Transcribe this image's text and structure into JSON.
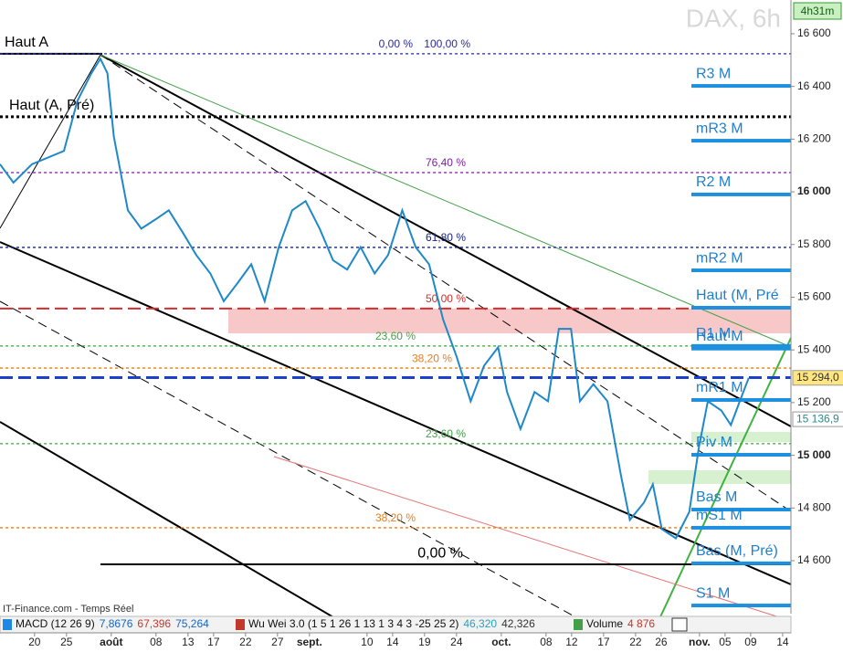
{
  "header": {
    "symbol": "DAX, 6h",
    "timer": "4h31m"
  },
  "chart_data": {
    "type": "line",
    "x": [
      -5.4,
      -3.3,
      -0.4,
      4.6,
      6.7,
      8.9,
      10.3,
      11.4,
      12.4,
      14.6,
      16.7,
      18.9,
      21,
      23.2,
      25.3,
      27.5,
      29.6,
      31.8,
      33.9,
      36,
      38.2,
      40.3,
      42.4,
      44.6,
      46.7,
      48.9,
      51,
      53.2,
      55.3,
      57.5,
      59.6,
      61.7,
      63.9,
      66,
      68.2,
      70.3,
      72.5,
      73.9,
      76,
      78.2,
      80.3,
      82,
      83.9,
      85.3,
      87.4,
      89.6,
      91.7,
      93.1,
      95.3,
      96.7,
      98.1,
      100.3,
      102.4,
      103.9,
      105.3,
      107.4,
      108.9,
      110.3,
      111.7
    ],
    "values": [
      16105,
      16035,
      16105,
      16155,
      16345,
      16450,
      16505,
      16450,
      16210,
      15930,
      15860,
      15895,
      15930,
      15845,
      15760,
      15690,
      15585,
      15655,
      15725,
      15585,
      15790,
      15930,
      15965,
      15860,
      15740,
      15705,
      15790,
      15690,
      15760,
      15930,
      15790,
      15725,
      15515,
      15375,
      15205,
      15340,
      15410,
      15240,
      15100,
      15240,
      15205,
      15480,
      15480,
      15205,
      15270,
      15205,
      14925,
      14755,
      14820,
      14890,
      14720,
      14685,
      14785,
      15030,
      15205,
      15170,
      15115,
      15205,
      15294
    ],
    "color": "#1e88c8",
    "xlim": [
      -5.4,
      118.3
    ],
    "xticks": [
      {
        "value": 0,
        "label": "20"
      },
      {
        "value": 5,
        "label": "25"
      },
      {
        "value": 12,
        "label": "août"
      },
      {
        "value": 19,
        "label": "08"
      },
      {
        "value": 24,
        "label": "13"
      },
      {
        "value": 28,
        "label": "17"
      },
      {
        "value": 33,
        "label": "22"
      },
      {
        "value": 38,
        "label": "27"
      },
      {
        "value": 43,
        "label": "sept."
      },
      {
        "value": 52,
        "label": "10"
      },
      {
        "value": 56,
        "label": "14"
      },
      {
        "value": 61,
        "label": "19"
      },
      {
        "value": 66,
        "label": "24"
      },
      {
        "value": 73,
        "label": "oct."
      },
      {
        "value": 80,
        "label": "08"
      },
      {
        "value": 84,
        "label": "12"
      },
      {
        "value": 89,
        "label": "17"
      },
      {
        "value": 94,
        "label": "22"
      },
      {
        "value": 98,
        "label": "26"
      },
      {
        "value": 104,
        "label": "nov."
      },
      {
        "value": 108,
        "label": "05"
      },
      {
        "value": 112,
        "label": "09"
      },
      {
        "value": 117,
        "label": "14"
      }
    ],
    "ylim": [
      14399,
      16728
    ],
    "yticks": [
      {
        "value": 16600,
        "label": "16 600"
      },
      {
        "value": 16400,
        "label": "16 400"
      },
      {
        "value": 16200,
        "label": "16 200"
      },
      {
        "value": 16000,
        "label": "16 000"
      },
      {
        "value": 15800,
        "label": "15 800"
      },
      {
        "value": 15600,
        "label": "15 600"
      },
      {
        "value": 15400,
        "label": "15 400"
      },
      {
        "value": 15200,
        "label": "15 200"
      },
      {
        "value": 15000,
        "label": "15 000"
      },
      {
        "value": 14800,
        "label": "14 800"
      },
      {
        "value": 14600,
        "label": "14 600"
      }
    ],
    "levels": [
      {
        "value": 16524,
        "color": "#000000",
        "dash": "solid",
        "labels": [
          "Haut A"
        ]
      },
      {
        "value": 16524,
        "color": "#2a2a9a",
        "dash": "dotted",
        "labels": [
          "0,00 %",
          "100,00 %"
        ]
      },
      {
        "value": 16285,
        "color": "#000000",
        "dash": "dotted",
        "labels": [
          "Haut (A, Pré)"
        ]
      },
      {
        "value": 16073,
        "color": "#7b1fa2",
        "dash": "dotted",
        "labels": [
          "76,40 %"
        ]
      },
      {
        "value": 15789,
        "color": "#1a237e",
        "dash": "dotted",
        "labels": [
          "61,80 %"
        ]
      },
      {
        "value": 15557,
        "color": "#d32f2f",
        "dash": "dashed",
        "labels": [
          "50,00 %"
        ]
      },
      {
        "value": 15415,
        "color": "#43a047",
        "dash": "dotted",
        "labels": [
          "23,60 %"
        ]
      },
      {
        "value": 15331,
        "color": "#e67e22",
        "dash": "dotted",
        "labels": [
          "38,20 %"
        ]
      },
      {
        "value": 15295,
        "color": "#1e40c8",
        "dash": "dashed",
        "labels": []
      },
      {
        "value": 15044,
        "color": "#43a047",
        "dash": "dotted",
        "labels": [
          "23,60 %"
        ]
      },
      {
        "value": 14725,
        "color": "#e67e22",
        "dash": "dotted",
        "labels": [
          "38,20 %"
        ]
      },
      {
        "value": 14586,
        "color": "#000000",
        "dash": "solid",
        "labels": [
          "0,00 %"
        ]
      }
    ],
    "pivots": [
      {
        "label": "R3 M",
        "value": 16402
      },
      {
        "label": "mR3 M",
        "value": 16194
      },
      {
        "label": "R2 M",
        "value": 15990
      },
      {
        "label": "mR2 M",
        "value": 15702
      },
      {
        "label": "Haut (M, Pré",
        "value": 15560
      },
      {
        "label": "R1 M",
        "value": 15415
      },
      {
        "label": "Haut M",
        "value": 15405
      },
      {
        "label": "mR1 M",
        "value": 15210
      },
      {
        "label": "Piv M",
        "value": 15002
      },
      {
        "label": "Bas M",
        "value": 14794
      },
      {
        "label": "mS1 M",
        "value": 14725
      },
      {
        "label": "Bas (M, Pré)",
        "value": 14590
      },
      {
        "label": "S1 M",
        "value": 14430
      }
    ],
    "price_tags": [
      {
        "label": "15 294,0",
        "value": 15294
      },
      {
        "label": "15 136,9",
        "value": 15136.9
      }
    ]
  },
  "footer": {
    "source": "IT-Finance.com - Temps Réel",
    "indicators": [
      {
        "name": "MACD (12 26 9)",
        "readings": [
          "7,8676",
          "67,396",
          "75,264"
        ]
      },
      {
        "name": "Wu Wei 3.0 (1 5 1 26 1 13 1 3 4 3 -25 25 2)",
        "readings": [
          "46,320",
          "42,326"
        ]
      },
      {
        "name": "Volume",
        "readings": [
          "4 876"
        ]
      }
    ]
  }
}
